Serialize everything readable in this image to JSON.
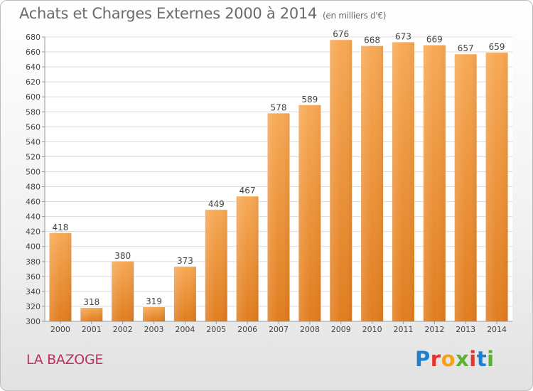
{
  "title": "Achats et Charges Externes 2000 à 2014",
  "unit": "(en milliers d'€)",
  "commune": "LA BAZOGE",
  "brand": {
    "letters": [
      "P",
      "r",
      "o",
      "x",
      "i",
      "t",
      "i"
    ],
    "colors": [
      "#1f7fcf",
      "#e6342c",
      "#f4a21c",
      "#5bb135",
      "#e6342c",
      "#1f7fcf",
      "#5bb135"
    ]
  },
  "colors": {
    "bar_top": "#f7a955",
    "bar_bottom": "#e17d1f",
    "grid": "#dcdcdc",
    "axis_text": "#444444"
  },
  "chart_data": {
    "type": "bar",
    "title": "Achats et Charges Externes 2000 à 2014",
    "subtitle": "(en milliers d'€)",
    "categories": [
      "2000",
      "2001",
      "2002",
      "2003",
      "2004",
      "2005",
      "2006",
      "2007",
      "2008",
      "2009",
      "2010",
      "2011",
      "2012",
      "2013",
      "2014"
    ],
    "values": [
      418,
      318,
      380,
      319,
      373,
      449,
      467,
      578,
      589,
      676,
      668,
      673,
      669,
      657,
      659
    ],
    "data_labels": [
      "418",
      "318",
      "380",
      "319",
      "373",
      "449",
      "467",
      "578",
      "589",
      "676",
      "668",
      "673",
      "669",
      "657",
      "659"
    ],
    "ylim": [
      300,
      680
    ],
    "yticks": [
      "300",
      "320",
      "340",
      "360",
      "380",
      "400",
      "420",
      "440",
      "460",
      "480",
      "500",
      "520",
      "540",
      "560",
      "580",
      "600",
      "620",
      "640",
      "660",
      "680"
    ],
    "grid": true
  }
}
